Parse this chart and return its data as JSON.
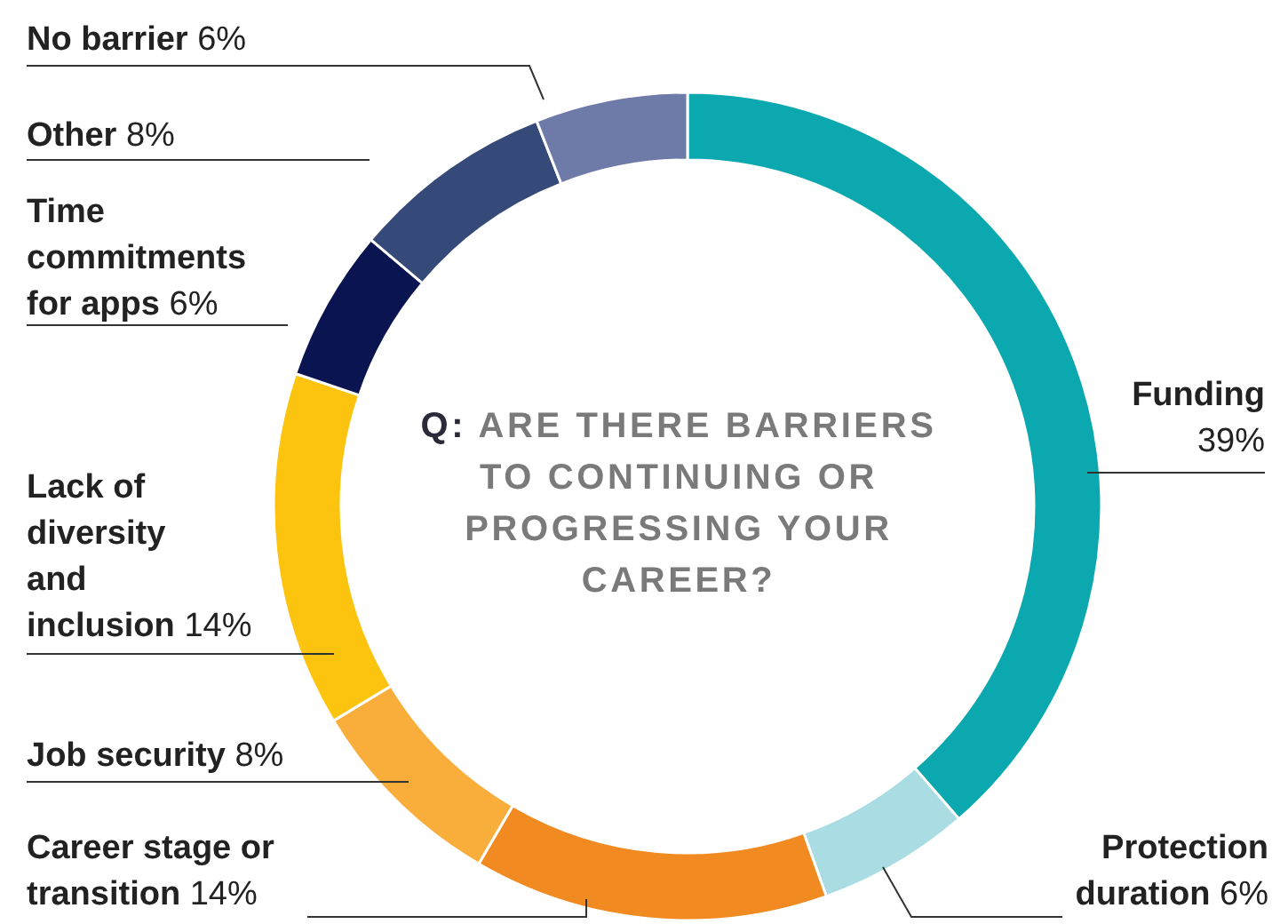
{
  "chart_data": {
    "type": "donut",
    "title": "Q: ARE THERE BARRIERS TO CONTINUING OR PROGRESSING YOUR CAREER?",
    "categories": [
      "Funding",
      "Protection duration",
      "Career stage or transition",
      "Job security",
      "Lack of diversity and inclusion",
      "Time commitments for apps",
      "Other",
      "No barrier"
    ],
    "values": [
      39,
      6,
      14,
      8,
      14,
      6,
      8,
      6
    ],
    "value_labels": [
      "39%",
      "6%",
      "14%",
      "8%",
      "14%",
      "6%",
      "8%",
      "6%"
    ],
    "colors": [
      "#0ba8b0",
      "#a9dde3",
      "#f28a22",
      "#f9ae3b",
      "#fcc40f",
      "#0a1450",
      "#364a7a",
      "#6e7aa8"
    ]
  }
}
